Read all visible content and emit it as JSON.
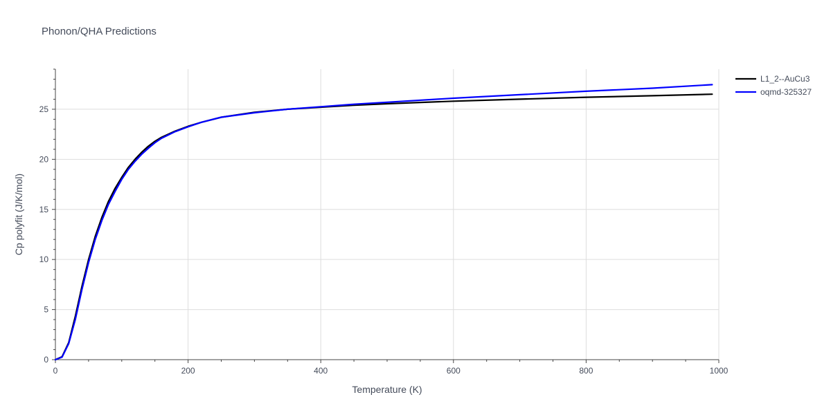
{
  "chart_data": {
    "type": "line",
    "title": "Phonon/QHA Predictions",
    "xlabel": "Temperature (K)",
    "ylabel": "Cp polyfit (J/K/mol)",
    "xlim": [
      0,
      1000
    ],
    "ylim": [
      0,
      29
    ],
    "xticks": [
      0,
      200,
      400,
      600,
      800,
      1000
    ],
    "yticks": [
      0,
      5,
      10,
      15,
      20,
      25
    ],
    "grid": true,
    "legend_position": "top-right",
    "series": [
      {
        "name": "L1_2--AuCu3",
        "color": "#000000",
        "x": [
          0,
          10,
          20,
          30,
          40,
          50,
          60,
          70,
          80,
          90,
          100,
          110,
          120,
          130,
          140,
          150,
          160,
          180,
          200,
          220,
          250,
          300,
          350,
          400,
          450,
          500,
          600,
          700,
          800,
          900,
          990
        ],
        "y": [
          0,
          0.3,
          1.7,
          4.3,
          7.3,
          10.0,
          12.3,
          14.2,
          15.8,
          17.1,
          18.2,
          19.2,
          20.0,
          20.7,
          21.3,
          21.8,
          22.2,
          22.8,
          23.3,
          23.7,
          24.2,
          24.7,
          25.0,
          25.2,
          25.4,
          25.55,
          25.8,
          26.0,
          26.2,
          26.35,
          26.5
        ]
      },
      {
        "name": "oqmd-325327",
        "color": "#0000ff",
        "x": [
          0,
          10,
          20,
          30,
          40,
          50,
          60,
          70,
          80,
          90,
          100,
          110,
          120,
          130,
          140,
          150,
          160,
          180,
          200,
          220,
          250,
          300,
          350,
          400,
          450,
          500,
          600,
          700,
          800,
          900,
          990
        ],
        "y": [
          0,
          0.25,
          1.6,
          4.0,
          7.0,
          9.7,
          12.0,
          13.9,
          15.5,
          16.8,
          18.0,
          19.0,
          19.8,
          20.5,
          21.1,
          21.65,
          22.1,
          22.75,
          23.25,
          23.7,
          24.2,
          24.65,
          25.0,
          25.25,
          25.5,
          25.7,
          26.1,
          26.45,
          26.8,
          27.1,
          27.45
        ]
      }
    ]
  }
}
